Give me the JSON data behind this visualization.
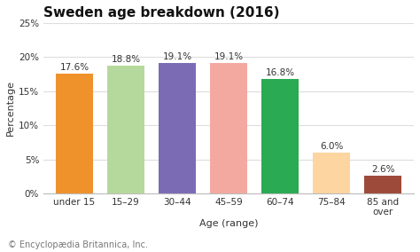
{
  "title": "Sweden age breakdown (2016)",
  "categories": [
    "under 15",
    "15–29",
    "30–44",
    "45–59",
    "60–74",
    "75–84",
    "85 and\nover"
  ],
  "values": [
    17.6,
    18.8,
    19.1,
    19.1,
    16.8,
    6.0,
    2.6
  ],
  "bar_colors": [
    "#f0922b",
    "#b5d99c",
    "#7b6bb5",
    "#f4a9a0",
    "#2aaa52",
    "#fdd5a0",
    "#9e4a3a"
  ],
  "xlabel": "Age (range)",
  "ylabel": "Percentage",
  "ylim": [
    0,
    25
  ],
  "yticks": [
    0,
    5,
    10,
    15,
    20,
    25
  ],
  "ytick_labels": [
    "0%",
    "5%",
    "10%",
    "15%",
    "20%",
    "25%"
  ],
  "footnote": "© Encyclopædia Britannica, Inc.",
  "title_fontsize": 11,
  "label_fontsize": 8,
  "tick_fontsize": 7.5,
  "footnote_fontsize": 7,
  "bar_label_fontsize": 7.5,
  "background_color": "#ffffff",
  "grid_color": "#dddddd"
}
